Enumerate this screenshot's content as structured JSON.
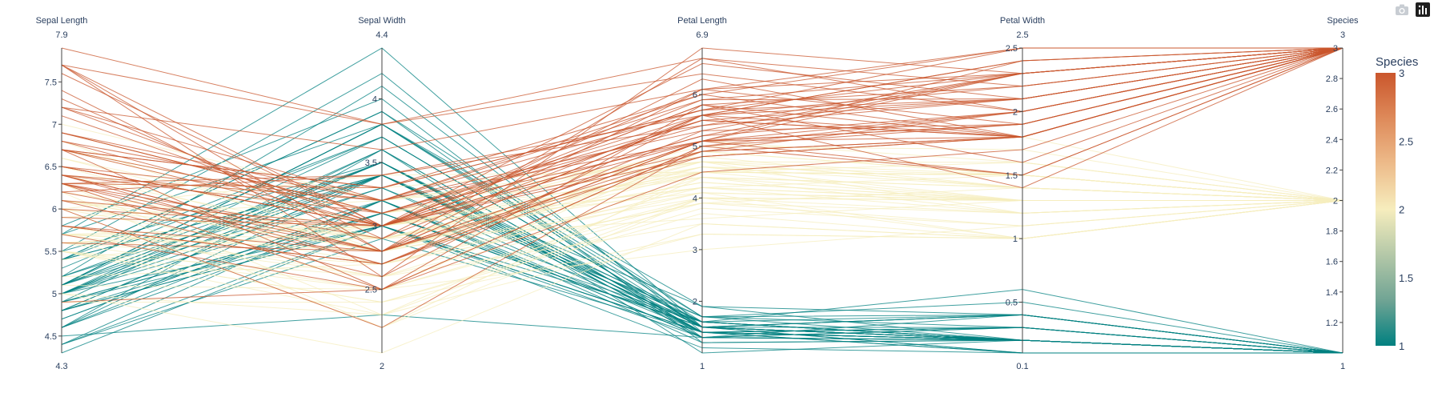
{
  "colors": {
    "colorscale": [
      "#008080",
      "#70a494",
      "#b4c8a8",
      "#f6edbd",
      "#edbb8a",
      "#de8a5a",
      "#ca562c"
    ],
    "text": "#2a3f5f",
    "axis": "#444444"
  },
  "modebar": {
    "camera_icon": "camera-icon",
    "logo_icon": "plotly-logo-icon"
  },
  "chart_data": {
    "type": "parallel_coordinates",
    "color_dimension": "Species",
    "dimensions": [
      {
        "label": "Sepal Length",
        "range": [
          4.3,
          7.9
        ],
        "range_labels": [
          "4.3",
          "7.9"
        ],
        "ticks": [
          4.5,
          5,
          5.5,
          6,
          6.5,
          7,
          7.5
        ],
        "tick_labels": [
          "4.5",
          "5",
          "5.5",
          "6",
          "6.5",
          "7",
          "7.5"
        ]
      },
      {
        "label": "Sepal Width",
        "range": [
          2,
          4.4
        ],
        "range_labels": [
          "2",
          "4.4"
        ],
        "ticks": [
          2.5,
          3,
          3.5,
          4
        ],
        "tick_labels": [
          "2.5",
          "3",
          "3.5",
          "4"
        ]
      },
      {
        "label": "Petal Length",
        "range": [
          1,
          6.9
        ],
        "range_labels": [
          "1",
          "6.9"
        ],
        "ticks": [
          2,
          3,
          4,
          5,
          6
        ],
        "tick_labels": [
          "2",
          "3",
          "4",
          "5",
          "6"
        ]
      },
      {
        "label": "Petal Width",
        "range": [
          0.1,
          2.5
        ],
        "range_labels": [
          "0.1",
          "2.5"
        ],
        "ticks": [
          0.5,
          1,
          1.5,
          2,
          2.5
        ],
        "tick_labels": [
          "0.5",
          "1",
          "1.5",
          "2",
          "2.5"
        ]
      },
      {
        "label": "Species",
        "range": [
          1,
          3
        ],
        "range_labels": [
          "1",
          "3"
        ],
        "ticks": [
          1.2,
          1.4,
          1.6,
          1.8,
          2,
          2.2,
          2.4,
          2.6,
          2.8,
          3
        ],
        "tick_labels": [
          "1.2",
          "1.4",
          "1.6",
          "1.8",
          "2",
          "2.2",
          "2.4",
          "2.6",
          "2.8",
          "3"
        ]
      }
    ],
    "colorbar": {
      "title": "Species",
      "range": [
        1,
        3
      ],
      "ticks": [
        1,
        1.5,
        2,
        2.5,
        3
      ],
      "tick_labels": [
        "1",
        "1.5",
        "2",
        "2.5",
        "3"
      ]
    },
    "records": [
      [
        5.1,
        3.5,
        1.4,
        0.2,
        1
      ],
      [
        4.9,
        3.0,
        1.4,
        0.2,
        1
      ],
      [
        4.7,
        3.2,
        1.3,
        0.2,
        1
      ],
      [
        4.6,
        3.1,
        1.5,
        0.2,
        1
      ],
      [
        5.0,
        3.6,
        1.4,
        0.2,
        1
      ],
      [
        5.4,
        3.9,
        1.7,
        0.4,
        1
      ],
      [
        4.6,
        3.4,
        1.4,
        0.3,
        1
      ],
      [
        5.0,
        3.4,
        1.5,
        0.2,
        1
      ],
      [
        4.4,
        2.9,
        1.4,
        0.2,
        1
      ],
      [
        4.9,
        3.1,
        1.5,
        0.1,
        1
      ],
      [
        5.4,
        3.7,
        1.5,
        0.2,
        1
      ],
      [
        4.8,
        3.4,
        1.6,
        0.2,
        1
      ],
      [
        4.8,
        3.0,
        1.4,
        0.1,
        1
      ],
      [
        4.3,
        3.0,
        1.1,
        0.1,
        1
      ],
      [
        5.8,
        4.0,
        1.2,
        0.2,
        1
      ],
      [
        5.7,
        4.4,
        1.5,
        0.4,
        1
      ],
      [
        5.4,
        3.9,
        1.3,
        0.4,
        1
      ],
      [
        5.1,
        3.5,
        1.4,
        0.3,
        1
      ],
      [
        5.7,
        3.8,
        1.7,
        0.3,
        1
      ],
      [
        5.1,
        3.8,
        1.5,
        0.3,
        1
      ],
      [
        5.4,
        3.4,
        1.7,
        0.2,
        1
      ],
      [
        5.1,
        3.7,
        1.5,
        0.4,
        1
      ],
      [
        4.6,
        3.6,
        1.0,
        0.2,
        1
      ],
      [
        5.1,
        3.3,
        1.7,
        0.5,
        1
      ],
      [
        4.8,
        3.4,
        1.9,
        0.2,
        1
      ],
      [
        5.0,
        3.0,
        1.6,
        0.2,
        1
      ],
      [
        5.0,
        3.4,
        1.6,
        0.4,
        1
      ],
      [
        5.2,
        3.5,
        1.5,
        0.2,
        1
      ],
      [
        5.2,
        3.4,
        1.4,
        0.2,
        1
      ],
      [
        4.7,
        3.2,
        1.6,
        0.2,
        1
      ],
      [
        4.8,
        3.1,
        1.6,
        0.2,
        1
      ],
      [
        5.4,
        3.4,
        1.5,
        0.4,
        1
      ],
      [
        5.2,
        4.1,
        1.5,
        0.1,
        1
      ],
      [
        5.5,
        4.2,
        1.4,
        0.2,
        1
      ],
      [
        4.9,
        3.1,
        1.5,
        0.2,
        1
      ],
      [
        5.0,
        3.2,
        1.2,
        0.2,
        1
      ],
      [
        5.5,
        3.5,
        1.3,
        0.2,
        1
      ],
      [
        4.9,
        3.6,
        1.4,
        0.1,
        1
      ],
      [
        4.4,
        3.0,
        1.3,
        0.2,
        1
      ],
      [
        5.1,
        3.4,
        1.5,
        0.2,
        1
      ],
      [
        5.0,
        3.5,
        1.3,
        0.3,
        1
      ],
      [
        4.5,
        2.3,
        1.3,
        0.3,
        1
      ],
      [
        4.4,
        3.2,
        1.3,
        0.2,
        1
      ],
      [
        5.0,
        3.5,
        1.6,
        0.6,
        1
      ],
      [
        5.1,
        3.8,
        1.9,
        0.4,
        1
      ],
      [
        4.8,
        3.0,
        1.4,
        0.3,
        1
      ],
      [
        5.1,
        3.8,
        1.6,
        0.2,
        1
      ],
      [
        4.6,
        3.2,
        1.4,
        0.2,
        1
      ],
      [
        5.3,
        3.7,
        1.5,
        0.2,
        1
      ],
      [
        5.0,
        3.3,
        1.4,
        0.2,
        1
      ],
      [
        7.0,
        3.2,
        4.7,
        1.4,
        2
      ],
      [
        6.4,
        3.2,
        4.5,
        1.5,
        2
      ],
      [
        6.9,
        3.1,
        4.9,
        1.5,
        2
      ],
      [
        5.5,
        2.3,
        4.0,
        1.3,
        2
      ],
      [
        6.5,
        2.8,
        4.6,
        1.5,
        2
      ],
      [
        5.7,
        2.8,
        4.5,
        1.3,
        2
      ],
      [
        6.3,
        3.3,
        4.7,
        1.6,
        2
      ],
      [
        4.9,
        2.4,
        3.3,
        1.0,
        2
      ],
      [
        6.6,
        2.9,
        4.6,
        1.3,
        2
      ],
      [
        5.2,
        2.7,
        3.9,
        1.4,
        2
      ],
      [
        5.0,
        2.0,
        3.5,
        1.0,
        2
      ],
      [
        5.9,
        3.0,
        4.2,
        1.5,
        2
      ],
      [
        6.0,
        2.2,
        4.0,
        1.0,
        2
      ],
      [
        6.1,
        2.9,
        4.7,
        1.4,
        2
      ],
      [
        5.6,
        2.9,
        3.6,
        1.3,
        2
      ],
      [
        6.7,
        3.1,
        4.4,
        1.4,
        2
      ],
      [
        5.6,
        3.0,
        4.5,
        1.5,
        2
      ],
      [
        5.8,
        2.7,
        4.1,
        1.0,
        2
      ],
      [
        6.2,
        2.2,
        4.5,
        1.5,
        2
      ],
      [
        5.6,
        2.5,
        3.9,
        1.1,
        2
      ],
      [
        5.9,
        3.2,
        4.8,
        1.8,
        2
      ],
      [
        6.1,
        2.8,
        4.0,
        1.3,
        2
      ],
      [
        6.3,
        2.5,
        4.9,
        1.5,
        2
      ],
      [
        6.1,
        2.8,
        4.7,
        1.2,
        2
      ],
      [
        6.4,
        2.9,
        4.3,
        1.3,
        2
      ],
      [
        6.6,
        3.0,
        4.4,
        1.4,
        2
      ],
      [
        6.8,
        2.8,
        4.8,
        1.4,
        2
      ],
      [
        6.7,
        3.0,
        5.0,
        1.7,
        2
      ],
      [
        6.0,
        2.9,
        4.5,
        1.5,
        2
      ],
      [
        5.7,
        2.6,
        3.5,
        1.0,
        2
      ],
      [
        5.5,
        2.4,
        3.8,
        1.1,
        2
      ],
      [
        5.5,
        2.4,
        3.7,
        1.0,
        2
      ],
      [
        5.8,
        2.7,
        3.9,
        1.2,
        2
      ],
      [
        6.0,
        2.7,
        5.1,
        1.6,
        2
      ],
      [
        5.4,
        3.0,
        4.5,
        1.5,
        2
      ],
      [
        6.0,
        3.4,
        4.5,
        1.6,
        2
      ],
      [
        6.7,
        3.1,
        4.7,
        1.5,
        2
      ],
      [
        6.3,
        2.3,
        4.4,
        1.3,
        2
      ],
      [
        5.6,
        3.0,
        4.1,
        1.3,
        2
      ],
      [
        5.5,
        2.5,
        4.0,
        1.3,
        2
      ],
      [
        5.5,
        2.6,
        4.4,
        1.2,
        2
      ],
      [
        6.1,
        3.0,
        4.6,
        1.4,
        2
      ],
      [
        5.8,
        2.6,
        4.0,
        1.2,
        2
      ],
      [
        5.0,
        2.3,
        3.3,
        1.0,
        2
      ],
      [
        5.6,
        2.7,
        4.2,
        1.3,
        2
      ],
      [
        5.7,
        3.0,
        4.2,
        1.2,
        2
      ],
      [
        5.7,
        2.9,
        4.2,
        1.3,
        2
      ],
      [
        6.2,
        2.9,
        4.3,
        1.3,
        2
      ],
      [
        5.1,
        2.5,
        3.0,
        1.1,
        2
      ],
      [
        5.7,
        2.8,
        4.1,
        1.3,
        2
      ],
      [
        6.3,
        3.3,
        6.0,
        2.5,
        3
      ],
      [
        5.8,
        2.7,
        5.1,
        1.9,
        3
      ],
      [
        7.1,
        3.0,
        5.9,
        2.1,
        3
      ],
      [
        6.3,
        2.9,
        5.6,
        1.8,
        3
      ],
      [
        6.5,
        3.0,
        5.8,
        2.2,
        3
      ],
      [
        7.6,
        3.0,
        6.6,
        2.1,
        3
      ],
      [
        4.9,
        2.5,
        4.5,
        1.7,
        3
      ],
      [
        7.3,
        2.9,
        6.3,
        1.8,
        3
      ],
      [
        6.7,
        2.5,
        5.8,
        1.8,
        3
      ],
      [
        7.2,
        3.6,
        6.1,
        2.5,
        3
      ],
      [
        6.5,
        3.2,
        5.1,
        2.0,
        3
      ],
      [
        6.4,
        2.7,
        5.3,
        1.9,
        3
      ],
      [
        6.8,
        3.0,
        5.5,
        2.1,
        3
      ],
      [
        5.7,
        2.5,
        5.0,
        2.0,
        3
      ],
      [
        5.8,
        2.8,
        5.1,
        2.4,
        3
      ],
      [
        6.4,
        3.2,
        5.3,
        2.3,
        3
      ],
      [
        6.5,
        3.0,
        5.5,
        1.8,
        3
      ],
      [
        7.7,
        3.8,
        6.7,
        2.2,
        3
      ],
      [
        7.7,
        2.6,
        6.9,
        2.3,
        3
      ],
      [
        6.0,
        2.2,
        5.0,
        1.5,
        3
      ],
      [
        6.9,
        3.2,
        5.7,
        2.3,
        3
      ],
      [
        5.6,
        2.8,
        4.9,
        2.0,
        3
      ],
      [
        7.7,
        2.8,
        6.7,
        2.0,
        3
      ],
      [
        6.3,
        2.7,
        4.9,
        1.8,
        3
      ],
      [
        6.7,
        3.3,
        5.7,
        2.1,
        3
      ],
      [
        7.2,
        3.2,
        6.0,
        1.8,
        3
      ],
      [
        6.2,
        2.8,
        4.8,
        1.8,
        3
      ],
      [
        6.1,
        3.0,
        4.9,
        1.8,
        3
      ],
      [
        6.4,
        2.8,
        5.6,
        2.1,
        3
      ],
      [
        7.2,
        3.0,
        5.8,
        1.6,
        3
      ],
      [
        7.4,
        2.8,
        6.1,
        1.9,
        3
      ],
      [
        7.9,
        3.8,
        6.4,
        2.0,
        3
      ],
      [
        6.4,
        2.8,
        5.6,
        2.2,
        3
      ],
      [
        6.3,
        2.8,
        5.1,
        1.5,
        3
      ],
      [
        6.1,
        2.6,
        5.6,
        1.4,
        3
      ],
      [
        7.7,
        3.0,
        6.1,
        2.3,
        3
      ],
      [
        6.3,
        3.4,
        5.6,
        2.4,
        3
      ],
      [
        6.4,
        3.1,
        5.5,
        1.8,
        3
      ],
      [
        6.0,
        3.0,
        4.8,
        1.8,
        3
      ],
      [
        6.9,
        3.1,
        5.4,
        2.1,
        3
      ],
      [
        6.7,
        3.1,
        5.6,
        2.4,
        3
      ],
      [
        6.9,
        3.1,
        5.1,
        2.3,
        3
      ],
      [
        5.8,
        2.7,
        5.1,
        1.9,
        3
      ],
      [
        6.8,
        3.2,
        5.9,
        2.3,
        3
      ],
      [
        6.7,
        3.3,
        5.7,
        2.5,
        3
      ],
      [
        6.7,
        3.0,
        5.2,
        2.3,
        3
      ],
      [
        6.3,
        2.5,
        5.0,
        1.9,
        3
      ],
      [
        6.5,
        3.0,
        5.2,
        2.0,
        3
      ],
      [
        6.2,
        3.4,
        5.4,
        2.3,
        3
      ],
      [
        5.9,
        3.0,
        5.1,
        1.8,
        3
      ]
    ]
  }
}
